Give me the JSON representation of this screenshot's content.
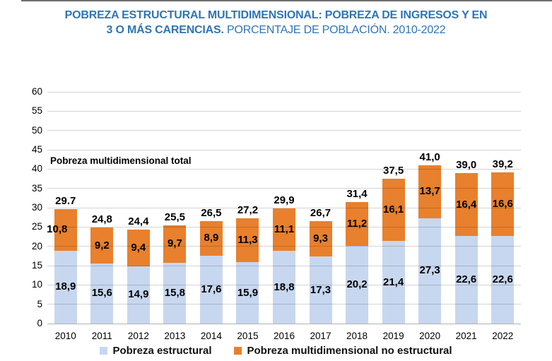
{
  "title": {
    "line1_bold": "POBREZA ESTRUCTURAL MULTIDIMENSIONAL: POBREZA DE INGRESOS Y EN",
    "line2_bold": "3 O MÁS CARENCIAS.",
    "line2_regular": "PORCENTAJE DE POBLACIÓN. 2010-2022",
    "color": "#2e75b6"
  },
  "chart_data": {
    "type": "bar",
    "stacked": true,
    "title": "POBREZA ESTRUCTURAL MULTIDIMENSIONAL: POBREZA DE INGRESOS Y EN 3 O MÁS CARENCIAS. PORCENTAJE DE POBLACIÓN. 2010-2022",
    "categories": [
      "2010",
      "2011",
      "2012",
      "2013",
      "2014",
      "2015",
      "2016",
      "2017",
      "2018",
      "2019",
      "2020",
      "2021",
      "2022"
    ],
    "series": [
      {
        "name": "Pobreza estructural",
        "color": "#c7d7ef",
        "values": [
          18.9,
          15.6,
          14.9,
          15.8,
          17.6,
          15.9,
          18.8,
          17.3,
          20.2,
          21.4,
          27.3,
          22.6,
          22.6
        ],
        "labels": [
          "18,9",
          "15,6",
          "14,9",
          "15,8",
          "17,6",
          "15,9",
          "18,8",
          "17,3",
          "20,2",
          "21,4",
          "27,3",
          "22,6",
          "22,6"
        ],
        "label_dx": [
          0,
          0,
          0,
          0,
          0,
          0,
          0,
          0,
          0,
          0,
          0,
          0,
          0
        ]
      },
      {
        "name": "Pobreza multidimensional no estructural",
        "color": "#e8802d",
        "values": [
          10.8,
          9.2,
          9.4,
          9.7,
          8.9,
          11.3,
          11.1,
          9.3,
          11.2,
          16.1,
          13.7,
          16.4,
          16.6
        ],
        "labels": [
          "10,8",
          "9,2",
          "9,4",
          "9,7",
          "8,9",
          "11,3",
          "11,1",
          "9,3",
          "11,2",
          "16,1",
          "13,7",
          "16,4",
          "16,6"
        ],
        "label_dx": [
          -12,
          0,
          0,
          0,
          0,
          0,
          0,
          0,
          0,
          0,
          0,
          0,
          0
        ]
      }
    ],
    "totals": {
      "values": [
        29.7,
        24.8,
        24.4,
        25.5,
        26.5,
        27.2,
        29.9,
        26.7,
        31.4,
        37.5,
        41.0,
        39.0,
        39.2
      ],
      "labels": [
        "29.7",
        "24,8",
        "24,4",
        "25,5",
        "26,5",
        "27,2",
        "29,9",
        "26,7",
        "31,4",
        "37,5",
        "41,0",
        "39,0",
        "39,2"
      ]
    },
    "annotation": "Pobreza multidimensional total",
    "xlabel": "",
    "ylabel": "",
    "ylim": [
      0,
      60
    ],
    "ytick_step": 5,
    "grid": true,
    "legend_position": "bottom"
  },
  "legend": {
    "items": [
      {
        "label": "Pobreza estructural",
        "color": "#c7d7ef"
      },
      {
        "label": "Pobreza multidimensional no estructural",
        "color": "#e8802d"
      }
    ]
  }
}
